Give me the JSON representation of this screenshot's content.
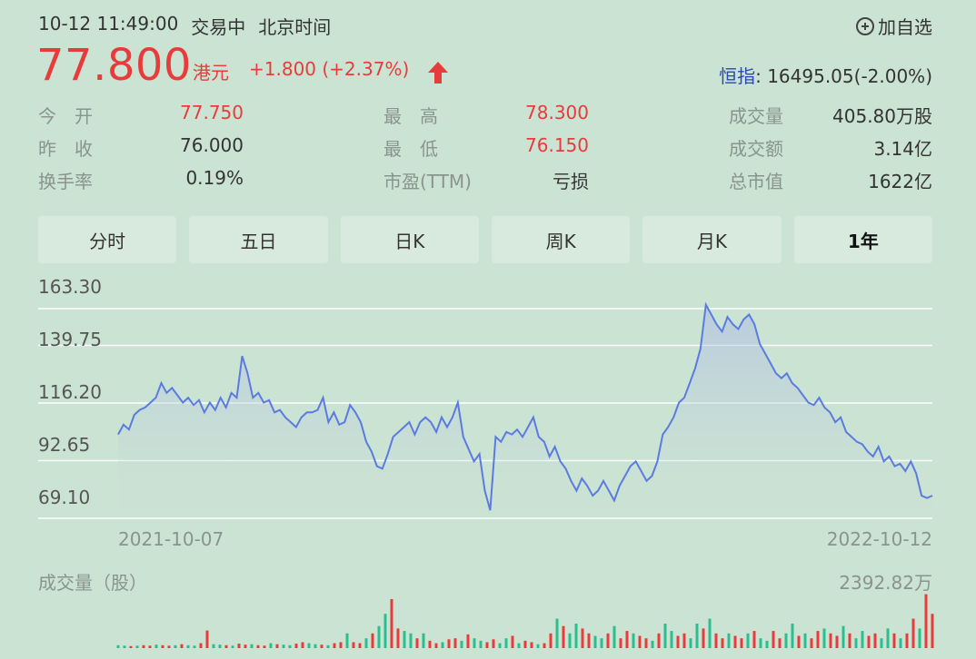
{
  "header": {
    "datetime": "10-12 11:49:00",
    "status": "交易中",
    "timezone": "北京时间",
    "add_watch": "加自选"
  },
  "quote": {
    "price": "77.800",
    "currency": "港元",
    "change": "+1.800 (+2.37%)",
    "index_label": "恒指",
    "index_value": ": 16495.05(-2.00%)"
  },
  "stats": {
    "open_label": "今　开",
    "open": "77.750",
    "prev_label": "昨　收",
    "prev": "76.000",
    "turnover_rate_label": "换手率",
    "turnover_rate": "0.19%",
    "high_label": "最　高",
    "high": "78.300",
    "low_label": "最　低",
    "low": "76.150",
    "pe_label": "市盈(TTM)",
    "pe": "亏损",
    "volume_label": "成交量",
    "volume": "405.80万股",
    "amount_label": "成交额",
    "amount": "3.14亿",
    "mcap_label": "总市值",
    "mcap": "1622亿"
  },
  "tabs": [
    "分时",
    "五日",
    "日K",
    "周K",
    "月K",
    "1年"
  ],
  "active_tab": "1年",
  "chart": {
    "y_ticks": [
      "163.30",
      "139.75",
      "116.20",
      "92.65",
      "69.10"
    ],
    "start_date": "2021-10-07",
    "end_date": "2022-10-12",
    "volume_label": "成交量（股）",
    "volume_max": "2392.82万"
  },
  "colors": {
    "up": "#e83b3b",
    "down": "#2bbf8f",
    "line": "#5b7be0",
    "index": "#2948b8"
  },
  "chart_data": {
    "type": "area",
    "ylim": [
      69.1,
      163.3
    ],
    "x": [
      "2021-10-07",
      "2022-10-12"
    ],
    "price_series": [
      103,
      107,
      105,
      111,
      113,
      114,
      116,
      118,
      124,
      120,
      122,
      119,
      116,
      118,
      115,
      117,
      112,
      116,
      113,
      118,
      114,
      120,
      118,
      135,
      128,
      118,
      120,
      116,
      117,
      112,
      113,
      110,
      108,
      106,
      110,
      112,
      112,
      113,
      118,
      108,
      112,
      107,
      108,
      115,
      112,
      108,
      100,
      96,
      90,
      89,
      95,
      102,
      104,
      106,
      108,
      103,
      108,
      110,
      108,
      104,
      110,
      106,
      110,
      116,
      102,
      97,
      92,
      95,
      80,
      72,
      102,
      100,
      104,
      103,
      105,
      102,
      106,
      110,
      102,
      100,
      94,
      98,
      92,
      89,
      84,
      80,
      85,
      82,
      78,
      80,
      84,
      80,
      76,
      82,
      86,
      90,
      92,
      88,
      84,
      86,
      92,
      103,
      106,
      110,
      116,
      118,
      124,
      130,
      138,
      156,
      152,
      148,
      145,
      151,
      148,
      146,
      150,
      152,
      148,
      140,
      136,
      132,
      128,
      126,
      128,
      124,
      122,
      119,
      116,
      115,
      118,
      114,
      112,
      108,
      110,
      104,
      102,
      100,
      99,
      96,
      94,
      98,
      92,
      94,
      90,
      91,
      88,
      92,
      87,
      78,
      77,
      78
    ],
    "volume_series": [
      0.06,
      0.05,
      0.04,
      0.05,
      0.06,
      0.05,
      0.07,
      0.06,
      0.05,
      0.06,
      0.08,
      0.06,
      0.05,
      0.1,
      0.36,
      0.08,
      0.07,
      0.06,
      0.05,
      0.09,
      0.07,
      0.08,
      0.06,
      0.05,
      0.1,
      0.08,
      0.07,
      0.06,
      0.09,
      0.12,
      0.1,
      0.08,
      0.07,
      0.06,
      0.1,
      0.12,
      0.3,
      0.12,
      0.1,
      0.2,
      0.3,
      0.45,
      0.7,
      1.0,
      0.4,
      0.35,
      0.3,
      0.2,
      0.3,
      0.15,
      0.1,
      0.12,
      0.18,
      0.2,
      0.15,
      0.28,
      0.2,
      0.15,
      0.12,
      0.18,
      0.1,
      0.2,
      0.25,
      0.1,
      0.15,
      0.12,
      0.08,
      0.1,
      0.3,
      0.6,
      0.45,
      0.3,
      0.5,
      0.4,
      0.3,
      0.25,
      0.2,
      0.3,
      0.45,
      0.2,
      0.35,
      0.3,
      0.25,
      0.2,
      0.15,
      0.3,
      0.5,
      0.35,
      0.25,
      0.3,
      0.2,
      0.5,
      0.4,
      0.6,
      0.3,
      0.2,
      0.3,
      0.25,
      0.2,
      0.3,
      0.35,
      0.2,
      0.15,
      0.35,
      0.2,
      0.3,
      0.5,
      0.25,
      0.3,
      0.2,
      0.35,
      0.4,
      0.3,
      0.25,
      0.45,
      0.3,
      0.2,
      0.35,
      0.25,
      0.3,
      0.2,
      0.4,
      0.3,
      0.2,
      0.3,
      0.6,
      0.4,
      1.1,
      0.7
    ]
  }
}
